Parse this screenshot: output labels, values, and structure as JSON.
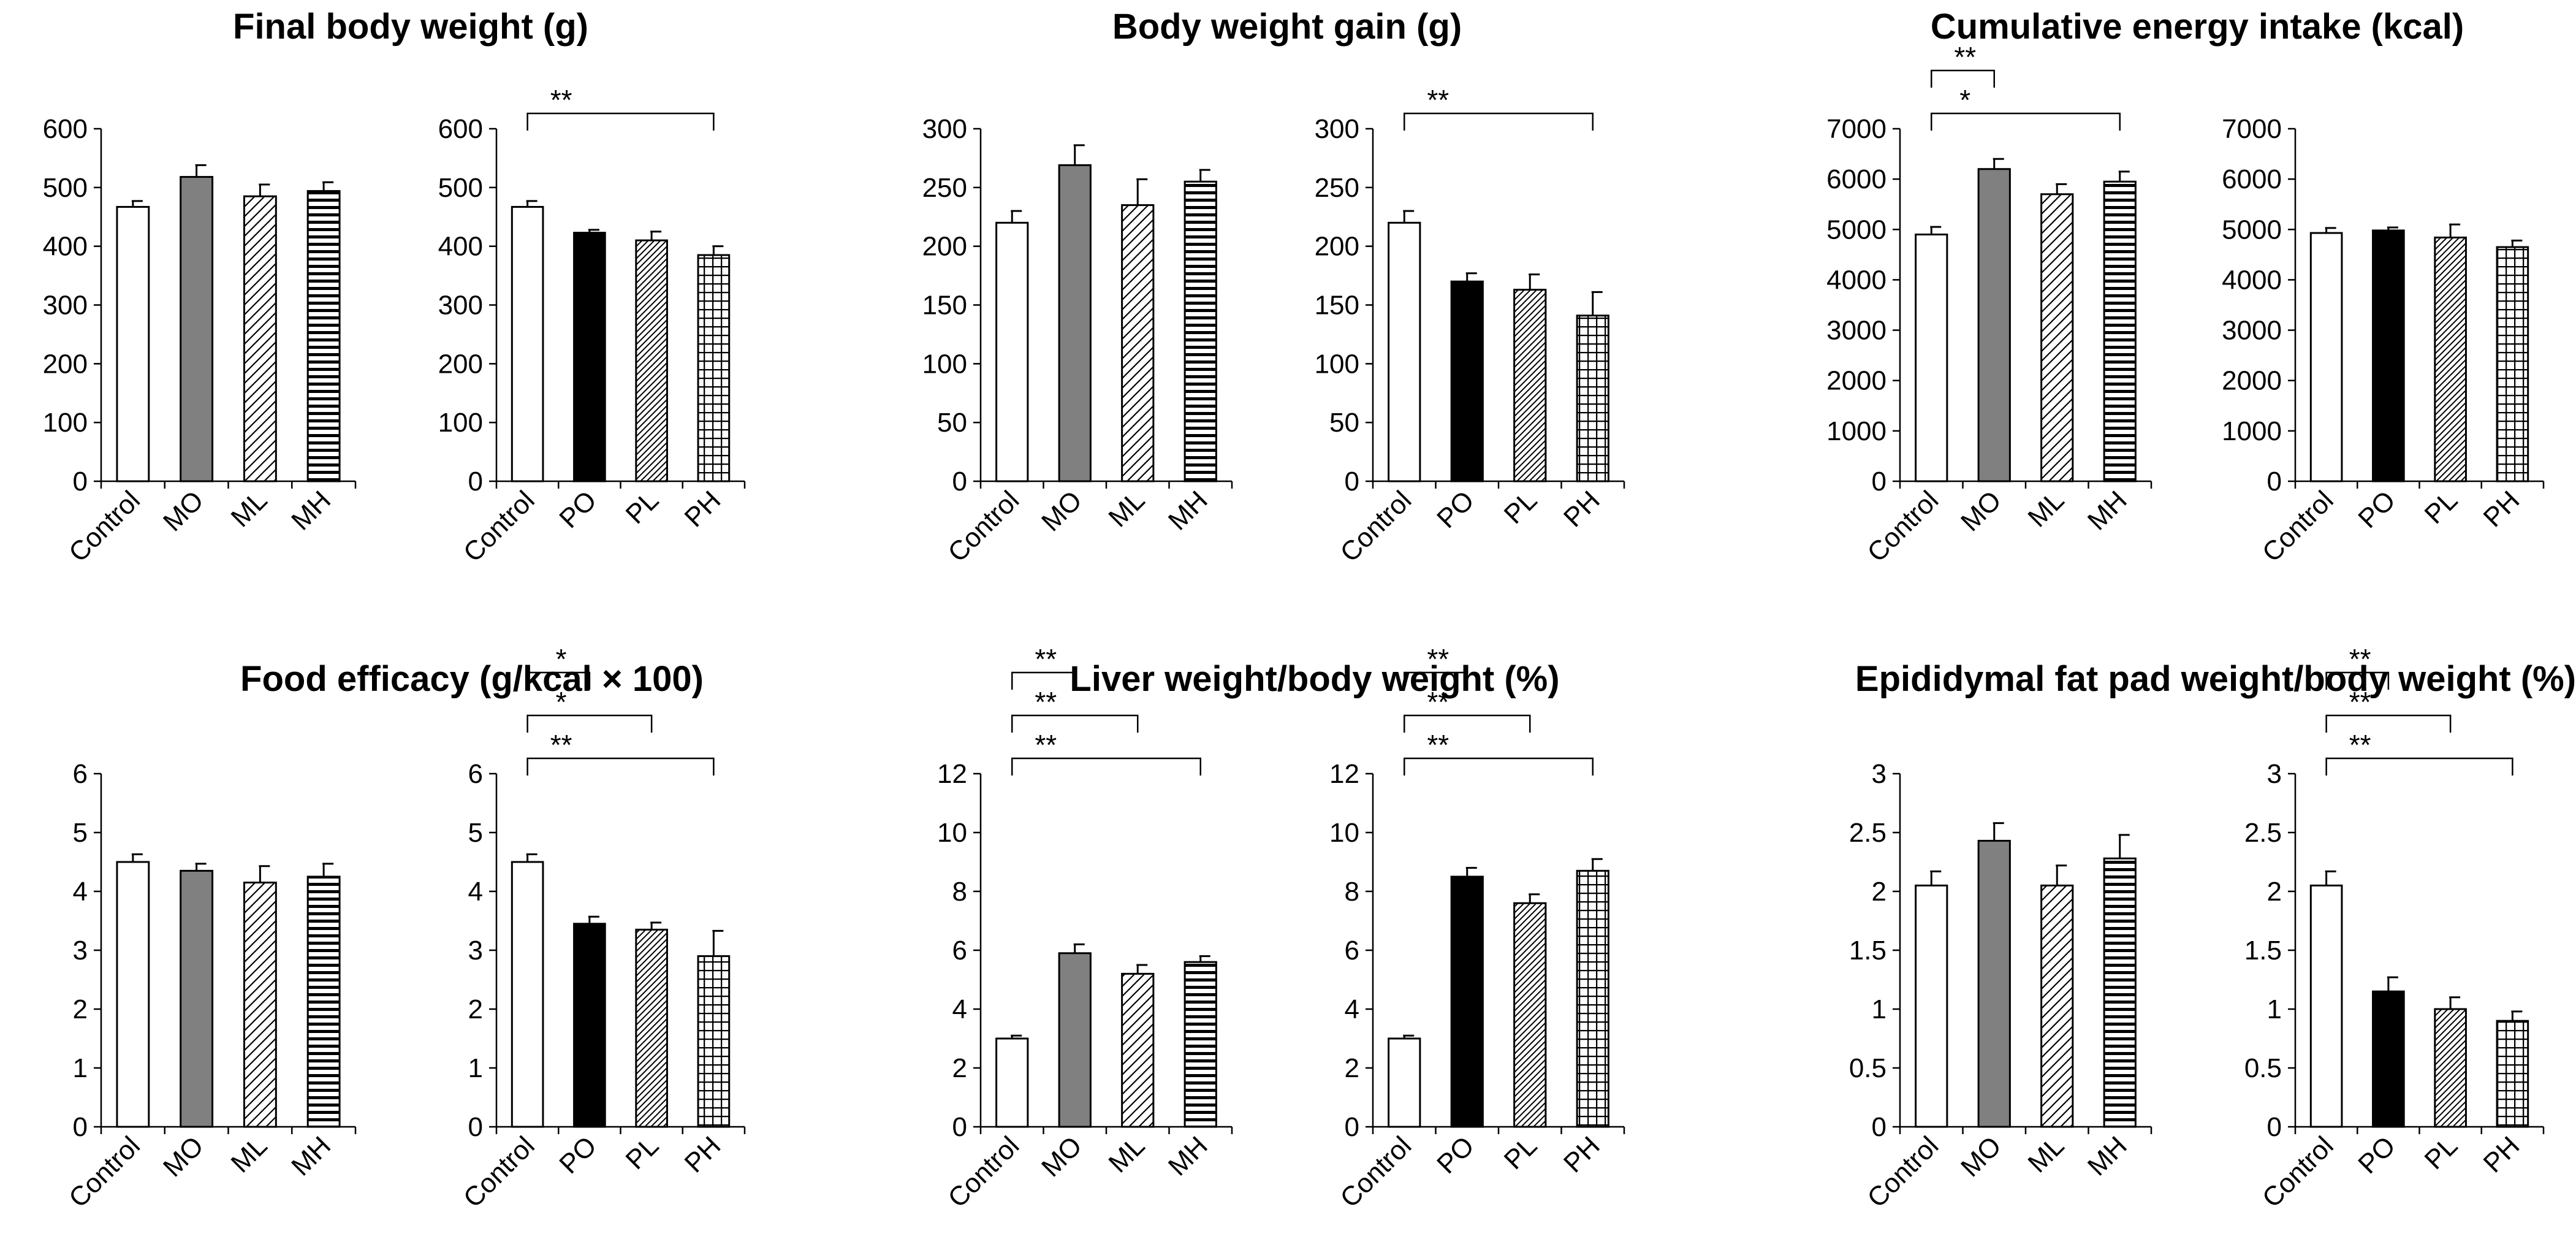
{
  "figure": {
    "panels": [
      {
        "title": "Final body weight (g)"
      },
      {
        "title": "Body weight gain (g)"
      },
      {
        "title": "Cumulative energy intake (kcal)"
      },
      {
        "title": "Food efficacy (g/kcal × 100)"
      },
      {
        "title": "Liver weight/body weight (%)"
      },
      {
        "title": "Epididymal fat pad weight/body weight (%)"
      }
    ]
  },
  "colors": {
    "bar_stroke": "#000000",
    "control_fill": "#ffffff",
    "mo_fill": "#808080",
    "po_fill": "#000000"
  },
  "fills": {
    "Control": "white",
    "MO": "gray",
    "ML": "diagonal-hatch",
    "MH": "horizontal-stripes",
    "PO": "black",
    "PL": "dense-diagonal-hatch",
    "PH": "grid-crosshatch"
  },
  "chart_data": [
    {
      "type": "bar",
      "panel": 0,
      "categories": [
        "Control",
        "MO",
        "ML",
        "MH"
      ],
      "values": [
        467,
        518,
        485,
        494
      ],
      "errors": [
        10,
        20,
        20,
        15
      ],
      "ylim": [
        0,
        600
      ],
      "yticks": [
        0,
        100,
        200,
        300,
        400,
        500,
        600
      ],
      "brackets": []
    },
    {
      "type": "bar",
      "panel": 0,
      "categories": [
        "Control",
        "PO",
        "PL",
        "PH"
      ],
      "values": [
        467,
        423,
        410,
        385
      ],
      "errors": [
        10,
        5,
        15,
        15
      ],
      "ylim": [
        0,
        600
      ],
      "yticks": [
        0,
        100,
        200,
        300,
        400,
        500,
        600
      ],
      "brackets": [
        {
          "from": 0,
          "to": 3,
          "label": "**"
        }
      ]
    },
    {
      "type": "bar",
      "panel": 1,
      "categories": [
        "Control",
        "MO",
        "ML",
        "MH"
      ],
      "values": [
        220,
        269,
        235,
        255
      ],
      "errors": [
        10,
        17,
        22,
        10
      ],
      "ylim": [
        0,
        300
      ],
      "yticks": [
        0,
        50,
        100,
        150,
        200,
        250,
        300
      ],
      "brackets": []
    },
    {
      "type": "bar",
      "panel": 1,
      "categories": [
        "Control",
        "PO",
        "PL",
        "PH"
      ],
      "values": [
        220,
        170,
        163,
        141
      ],
      "errors": [
        10,
        7,
        13,
        20
      ],
      "ylim": [
        0,
        300
      ],
      "yticks": [
        0,
        50,
        100,
        150,
        200,
        250,
        300
      ],
      "brackets": [
        {
          "from": 0,
          "to": 3,
          "label": "**"
        }
      ]
    },
    {
      "type": "bar",
      "panel": 2,
      "categories": [
        "Control",
        "MO",
        "ML",
        "MH"
      ],
      "values": [
        4900,
        6200,
        5700,
        5950
      ],
      "errors": [
        150,
        200,
        200,
        200
      ],
      "ylim": [
        0,
        7000
      ],
      "yticks": [
        0,
        1000,
        2000,
        3000,
        4000,
        5000,
        6000,
        7000
      ],
      "brackets": [
        {
          "from": 0,
          "to": 1,
          "label": "**"
        },
        {
          "from": 0,
          "to": 3,
          "label": "*"
        }
      ]
    },
    {
      "type": "bar",
      "panel": 2,
      "categories": [
        "Control",
        "PO",
        "PL",
        "PH"
      ],
      "values": [
        4930,
        4980,
        4840,
        4650
      ],
      "errors": [
        100,
        60,
        260,
        130
      ],
      "ylim": [
        0,
        7000
      ],
      "yticks": [
        0,
        1000,
        2000,
        3000,
        4000,
        5000,
        6000,
        7000
      ],
      "brackets": []
    },
    {
      "type": "bar",
      "panel": 3,
      "categories": [
        "Control",
        "MO",
        "ML",
        "MH"
      ],
      "values": [
        4.5,
        4.35,
        4.15,
        4.25
      ],
      "errors": [
        0.13,
        0.12,
        0.28,
        0.22
      ],
      "ylim": [
        0,
        6
      ],
      "yticks": [
        0,
        1,
        2,
        3,
        4,
        5,
        6
      ],
      "brackets": []
    },
    {
      "type": "bar",
      "panel": 3,
      "categories": [
        "Control",
        "PO",
        "PL",
        "PH"
      ],
      "values": [
        4.5,
        3.45,
        3.35,
        2.9
      ],
      "errors": [
        0.13,
        0.12,
        0.12,
        0.43
      ],
      "ylim": [
        0,
        6
      ],
      "yticks": [
        0,
        1,
        2,
        3,
        4,
        5,
        6
      ],
      "brackets": [
        {
          "from": 0,
          "to": 1,
          "label": "*"
        },
        {
          "from": 0,
          "to": 2,
          "label": "*"
        },
        {
          "from": 0,
          "to": 3,
          "label": "**"
        }
      ]
    },
    {
      "type": "bar",
      "panel": 4,
      "categories": [
        "Control",
        "MO",
        "ML",
        "MH"
      ],
      "values": [
        3.0,
        5.9,
        5.2,
        5.6
      ],
      "errors": [
        0.1,
        0.3,
        0.3,
        0.2
      ],
      "ylim": [
        0,
        12
      ],
      "yticks": [
        0,
        2,
        4,
        6,
        8,
        10,
        12
      ],
      "brackets": [
        {
          "from": 0,
          "to": 1,
          "label": "**"
        },
        {
          "from": 0,
          "to": 2,
          "label": "**"
        },
        {
          "from": 0,
          "to": 3,
          "label": "**"
        }
      ]
    },
    {
      "type": "bar",
      "panel": 4,
      "categories": [
        "Control",
        "PO",
        "PL",
        "PH"
      ],
      "values": [
        3.0,
        8.5,
        7.6,
        8.7
      ],
      "errors": [
        0.1,
        0.3,
        0.3,
        0.4
      ],
      "ylim": [
        0,
        12
      ],
      "yticks": [
        0,
        2,
        4,
        6,
        8,
        10,
        12
      ],
      "brackets": [
        {
          "from": 0,
          "to": 1,
          "label": "**"
        },
        {
          "from": 0,
          "to": 2,
          "label": "**"
        },
        {
          "from": 0,
          "to": 3,
          "label": "**"
        }
      ]
    },
    {
      "type": "bar",
      "panel": 5,
      "categories": [
        "Control",
        "MO",
        "ML",
        "MH"
      ],
      "values": [
        2.05,
        2.43,
        2.05,
        2.28
      ],
      "errors": [
        0.12,
        0.15,
        0.17,
        0.2
      ],
      "ylim": [
        0,
        3
      ],
      "yticks": [
        0,
        0.5,
        1,
        1.5,
        2,
        2.5,
        3
      ],
      "brackets": []
    },
    {
      "type": "bar",
      "panel": 5,
      "categories": [
        "Control",
        "PO",
        "PL",
        "PH"
      ],
      "values": [
        2.05,
        1.15,
        1.0,
        0.9
      ],
      "errors": [
        0.12,
        0.12,
        0.1,
        0.08
      ],
      "ylim": [
        0,
        3
      ],
      "yticks": [
        0,
        0.5,
        1,
        1.5,
        2,
        2.5,
        3
      ],
      "brackets": [
        {
          "from": 0,
          "to": 1,
          "label": "**"
        },
        {
          "from": 0,
          "to": 2,
          "label": "**"
        },
        {
          "from": 0,
          "to": 3,
          "label": "**"
        }
      ]
    }
  ]
}
